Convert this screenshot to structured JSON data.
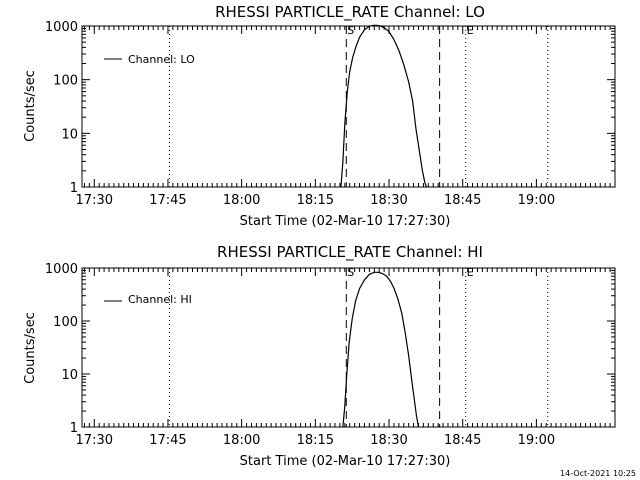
{
  "chart_data": [
    {
      "type": "line",
      "title": "RHESSI PARTICLE_RATE Channel: LO",
      "xlabel": "Start Time (02-Mar-10 17:27:30)",
      "ylabel": "Counts/sec",
      "yscale": "log",
      "ylim": [
        1,
        1000
      ],
      "y_tick_labels": [
        "1",
        "10",
        "100",
        "1000"
      ],
      "y_tick_values": [
        1,
        10,
        100,
        1000
      ],
      "xlim_minutes": [
        1047.5,
        1156
      ],
      "x_tick_labels": [
        "17:30",
        "17:45",
        "18:00",
        "18:15",
        "18:30",
        "18:45",
        "19:00"
      ],
      "x_tick_values_minutes": [
        1050,
        1065,
        1080,
        1095,
        1110,
        1125,
        1140
      ],
      "legend": {
        "label": "Channel: LO",
        "placement": "top-left"
      },
      "markers": [
        {
          "label": "S",
          "minute": 1101.3,
          "style": "dashed-with-label"
        },
        {
          "label": "E",
          "minute": 1125.6,
          "style": "dotted-with-label"
        },
        {
          "label": "",
          "minute": 1065.3,
          "style": "dotted"
        },
        {
          "label": "",
          "minute": 1120.3,
          "style": "dashed"
        },
        {
          "label": "",
          "minute": 1142.3,
          "style": "dotted"
        }
      ],
      "series": [
        {
          "name": "Channel: LO",
          "x_minutes": [
            1100.2,
            1100.6,
            1101.0,
            1101.5,
            1102.0,
            1102.6,
            1103.3,
            1104.0,
            1105.0,
            1106.0,
            1106.8,
            1107.5,
            1108.2,
            1109.0,
            1110.0,
            1111.0,
            1112.0,
            1113.0,
            1114.0,
            1114.8,
            1115.5,
            1116.2,
            1116.8,
            1117.3,
            1117.6
          ],
          "y": [
            1.0,
            3.0,
            15,
            60,
            140,
            260,
            420,
            620,
            850,
            990,
            1030,
            1030,
            1000,
            930,
            790,
            560,
            350,
            190,
            90,
            40,
            12,
            4.5,
            2.0,
            1.2,
            1.0
          ]
        }
      ]
    },
    {
      "type": "line",
      "title": "RHESSI PARTICLE_RATE Channel: HI",
      "xlabel": "Start Time (02-Mar-10 17:27:30)",
      "ylabel": "Counts/sec",
      "yscale": "log",
      "ylim": [
        1,
        1000
      ],
      "y_tick_labels": [
        "1",
        "10",
        "100",
        "1000"
      ],
      "y_tick_values": [
        1,
        10,
        100,
        1000
      ],
      "xlim_minutes": [
        1047.5,
        1156
      ],
      "x_tick_labels": [
        "17:30",
        "17:45",
        "18:00",
        "18:15",
        "18:30",
        "18:45",
        "19:00"
      ],
      "x_tick_values_minutes": [
        1050,
        1065,
        1080,
        1095,
        1110,
        1125,
        1140
      ],
      "legend": {
        "label": "Channel: HI",
        "placement": "top-left"
      },
      "markers": [
        {
          "label": "S",
          "minute": 1101.3,
          "style": "dashed-with-label"
        },
        {
          "label": "E",
          "minute": 1125.6,
          "style": "dotted-with-label"
        },
        {
          "label": "",
          "minute": 1065.3,
          "style": "dotted"
        },
        {
          "label": "",
          "minute": 1120.3,
          "style": "dashed"
        },
        {
          "label": "",
          "minute": 1142.3,
          "style": "dotted"
        }
      ],
      "series": [
        {
          "name": "Channel: HI",
          "x_minutes": [
            1100.6,
            1101.0,
            1101.4,
            1101.9,
            1102.5,
            1103.2,
            1104.0,
            1105.0,
            1106.0,
            1107.0,
            1107.8,
            1108.6,
            1109.5,
            1110.3,
            1111.0,
            1111.8,
            1112.6,
            1113.3,
            1114.0,
            1114.6,
            1115.2,
            1115.6,
            1116.0
          ],
          "y": [
            1.0,
            2.5,
            10,
            40,
            110,
            240,
            410,
            600,
            760,
            830,
            830,
            790,
            700,
            560,
            420,
            260,
            140,
            60,
            22,
            8,
            3,
            1.6,
            1.0
          ]
        }
      ]
    }
  ],
  "footer": {
    "timestamp": "14-Oct-2021 10:25"
  }
}
